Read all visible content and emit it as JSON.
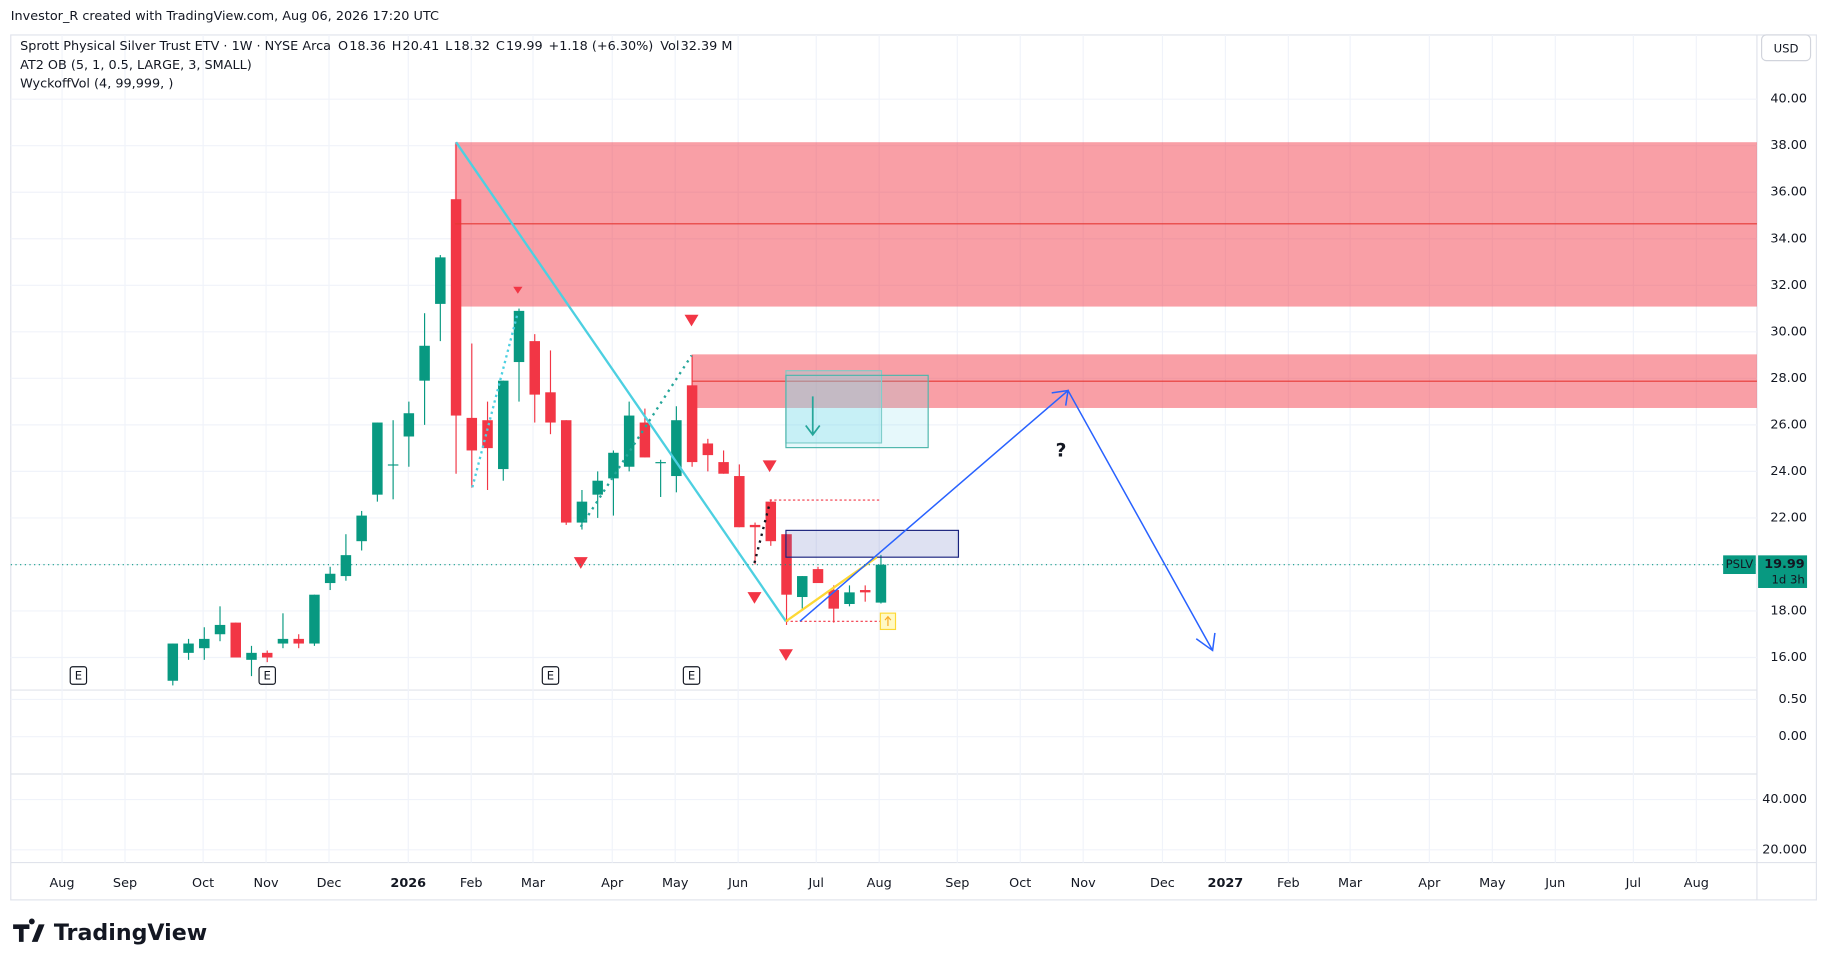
{
  "watermark_header": "Investor_R created with TradingView.com, Aug 06, 2026 17:20 UTC",
  "brand": "TradingView",
  "chart_data": {
    "type": "candlestick",
    "title": "Sprott Physical Silver Trust ETV · 1W · NYSE Arca",
    "legend_ohlc": [
      {
        "label": "O",
        "value": 18.36
      },
      {
        "label": "H",
        "value": 20.41
      },
      {
        "label": "L",
        "value": 18.32
      },
      {
        "label": "C",
        "value": 19.99
      }
    ],
    "change": "+1.18 (+6.30%)",
    "volume": {
      "label": "Vol",
      "value": "32.39 M"
    },
    "indicators": [
      "AT2 OB (5, 1, 0.5, LARGE, 3, SMALL)",
      "WyckoffVol (4, 99,999, )"
    ],
    "currency": "USD",
    "xticks": [
      "Aug",
      "Sep",
      "Oct",
      "Nov",
      "Dec",
      "2026",
      "Feb",
      "Mar",
      "Apr",
      "May",
      "Jun",
      "Jul",
      "Aug",
      "Sep",
      "Oct",
      "Nov",
      "Dec",
      "2027",
      "Feb",
      "Mar",
      "Apr",
      "May",
      "Jun",
      "Jul",
      "Aug"
    ],
    "ylim": [
      14.6,
      42.76
    ],
    "yticks": [
      {
        "value": 16,
        "label": "16.00"
      },
      {
        "value": 18,
        "label": "18.00"
      },
      {
        "value": 20,
        "label": "20.00"
      },
      {
        "value": 22,
        "label": "22.00"
      },
      {
        "value": 24,
        "label": "24.00"
      },
      {
        "value": 26,
        "label": "26.00"
      },
      {
        "value": 28,
        "label": "28.00"
      },
      {
        "value": 30,
        "label": "30.00"
      },
      {
        "value": 32,
        "label": "32.00"
      },
      {
        "value": 34,
        "label": "34.00"
      },
      {
        "value": 36,
        "label": "36.00"
      },
      {
        "value": 38,
        "label": "38.00"
      },
      {
        "value": 40,
        "label": "40.00"
      }
    ],
    "up_color": "#089981",
    "down_color": "#f23645",
    "open": [
      15.0,
      16.2,
      16.4,
      17.0,
      17.5,
      15.9,
      16.2,
      16.6,
      16.8,
      16.6,
      19.2,
      19.5,
      21.0,
      23.0,
      24.3,
      25.5,
      27.9,
      31.2,
      35.7,
      26.3,
      26.2,
      24.1,
      28.7,
      29.6,
      27.4,
      26.2,
      21.8,
      23.0,
      23.7,
      24.2,
      26.1,
      24.4,
      23.8,
      27.7,
      25.2,
      24.4,
      23.8,
      21.7,
      22.7,
      21.3,
      18.6,
      19.8,
      18.9,
      18.3,
      18.9,
      18.36
    ],
    "high": [
      16.6,
      16.8,
      17.3,
      18.2,
      17.5,
      16.5,
      16.3,
      17.9,
      17.0,
      18.7,
      19.9,
      21.3,
      22.3,
      26.1,
      26.2,
      27.0,
      30.8,
      33.3,
      38.1,
      29.5,
      27.0,
      27.9,
      31.0,
      29.9,
      29.2,
      26.2,
      23.2,
      24.0,
      24.9,
      27.0,
      26.7,
      24.5,
      26.8,
      29.0,
      25.4,
      24.9,
      24.3,
      21.8,
      22.8,
      21.3,
      19.5,
      19.9,
      19.1,
      19.1,
      19.1,
      20.41
    ],
    "low": [
      14.8,
      15.9,
      15.9,
      16.7,
      16.0,
      15.2,
      15.8,
      16.4,
      16.4,
      16.5,
      18.9,
      19.3,
      20.6,
      22.7,
      22.8,
      24.2,
      26.0,
      29.6,
      23.9,
      23.3,
      23.2,
      23.6,
      27.0,
      26.1,
      25.6,
      21.7,
      21.5,
      22.0,
      22.1,
      24.0,
      24.6,
      22.9,
      23.1,
      24.2,
      24.0,
      23.9,
      21.6,
      20.0,
      20.8,
      17.4,
      18.1,
      19.3,
      17.5,
      18.2,
      18.4,
      18.32
    ],
    "close": [
      16.6,
      16.6,
      16.8,
      17.4,
      16.0,
      16.2,
      16.0,
      16.8,
      16.6,
      18.7,
      19.6,
      20.4,
      22.1,
      26.1,
      24.3,
      26.5,
      29.4,
      33.2,
      26.4,
      24.9,
      25.0,
      27.9,
      30.9,
      27.3,
      26.1,
      21.8,
      22.7,
      23.6,
      24.8,
      26.4,
      24.6,
      24.4,
      26.2,
      24.4,
      24.7,
      23.9,
      21.6,
      21.6,
      21.0,
      18.7,
      19.5,
      19.2,
      18.1,
      18.8,
      18.8,
      19.99
    ],
    "last_price": {
      "symbol": "PSLV",
      "value": 19.99,
      "countdown": "1d 3h"
    },
    "events": [
      "E",
      "E",
      "E",
      "E"
    ],
    "annotation": "?",
    "volume_pane": {
      "ylim": [
        -0.5,
        0.625
      ],
      "yticks": [
        {
          "value": 0.5,
          "label": "0.50"
        },
        {
          "value": 0,
          "label": "0.00"
        }
      ]
    },
    "lower_pane": {
      "ylim": [
        14.9,
        50.2
      ],
      "yticks": [
        {
          "value": 40,
          "label": "40.000"
        },
        {
          "value": 20,
          "label": "20.000"
        }
      ]
    }
  }
}
